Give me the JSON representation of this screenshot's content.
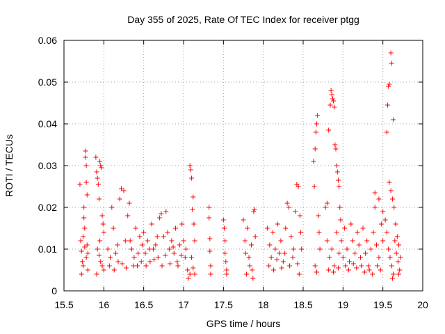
{
  "chart_data": {
    "type": "scatter",
    "title": "Day 355 of 2025, Rate Of TEC Index for receiver ptgg",
    "xlabel": "GPS time / hours",
    "ylabel": "ROTI / TECUs",
    "xlim": [
      15.5,
      20
    ],
    "ylim": [
      0,
      0.06
    ],
    "xticks": [
      15.5,
      16,
      16.5,
      17,
      17.5,
      18,
      18.5,
      19,
      19.5,
      20
    ],
    "xtick_labels": [
      "15.5",
      "16",
      "16.5",
      "17",
      "17.5",
      "18",
      "18.5",
      "19",
      "19.5",
      "20"
    ],
    "yticks": [
      0,
      0.01,
      0.02,
      0.03,
      0.04,
      0.05,
      0.06
    ],
    "ytick_labels": [
      "0",
      "0.01",
      "0.02",
      "0.03",
      "0.04",
      "0.05",
      "0.06"
    ],
    "grid": true,
    "marker": "+",
    "color": "#ff0000",
    "series": [
      {
        "name": "ROTI",
        "points": [
          [
            15.7,
            0.0255
          ],
          [
            15.71,
            0.012
          ],
          [
            15.72,
            0.0095
          ],
          [
            15.73,
            0.007
          ],
          [
            15.74,
            0.006
          ],
          [
            15.75,
            0.0175
          ],
          [
            15.75,
            0.02
          ],
          [
            15.76,
            0.015
          ],
          [
            15.77,
            0.0335
          ],
          [
            15.77,
            0.032
          ],
          [
            15.78,
            0.03
          ],
          [
            15.78,
            0.026
          ],
          [
            15.79,
            0.023
          ],
          [
            15.79,
            0.011
          ],
          [
            15.8,
            0.009
          ],
          [
            15.8,
            0.005
          ],
          [
            15.72,
            0.004
          ],
          [
            15.74,
            0.013
          ],
          [
            15.76,
            0.0105
          ],
          [
            15.78,
            0.008
          ],
          [
            15.9,
            0.032
          ],
          [
            15.91,
            0.0285
          ],
          [
            15.92,
            0.027
          ],
          [
            15.93,
            0.0255
          ],
          [
            15.94,
            0.022
          ],
          [
            15.95,
            0.031
          ],
          [
            15.96,
            0.03
          ],
          [
            15.97,
            0.0295
          ],
          [
            15.98,
            0.018
          ],
          [
            15.99,
            0.016
          ],
          [
            16.0,
            0.014
          ],
          [
            15.92,
            0.01
          ],
          [
            15.94,
            0.0085
          ],
          [
            15.96,
            0.007
          ],
          [
            15.98,
            0.006
          ],
          [
            16.0,
            0.005
          ],
          [
            15.91,
            0.004
          ],
          [
            15.95,
            0.012
          ],
          [
            16.05,
            0.01
          ],
          [
            16.08,
            0.008
          ],
          [
            16.1,
            0.02
          ],
          [
            16.12,
            0.015
          ],
          [
            16.15,
            0.009
          ],
          [
            16.18,
            0.007
          ],
          [
            16.2,
            0.022
          ],
          [
            16.22,
            0.0245
          ],
          [
            16.25,
            0.024
          ],
          [
            16.27,
            0.012
          ],
          [
            16.3,
            0.018
          ],
          [
            16.32,
            0.021
          ],
          [
            16.35,
            0.01
          ],
          [
            16.38,
            0.008
          ],
          [
            16.4,
            0.015
          ],
          [
            16.42,
            0.006
          ],
          [
            16.45,
            0.013
          ],
          [
            16.48,
            0.011
          ],
          [
            16.5,
            0.014
          ],
          [
            16.52,
            0.009
          ],
          [
            16.55,
            0.012
          ],
          [
            16.58,
            0.007
          ],
          [
            16.6,
            0.016
          ],
          [
            16.62,
            0.01
          ],
          [
            16.65,
            0.011
          ],
          [
            16.68,
            0.008
          ],
          [
            16.7,
            0.0175
          ],
          [
            16.72,
            0.0185
          ],
          [
            16.75,
            0.013
          ],
          [
            16.78,
            0.019
          ],
          [
            16.8,
            0.014
          ],
          [
            16.82,
            0.01
          ],
          [
            16.85,
            0.012
          ],
          [
            16.88,
            0.009
          ],
          [
            16.9,
            0.015
          ],
          [
            16.92,
            0.007
          ],
          [
            16.95,
            0.011
          ],
          [
            16.98,
            0.016
          ],
          [
            17.0,
            0.012
          ],
          [
            17.02,
            0.008
          ],
          [
            17.05,
            0.005
          ],
          [
            17.08,
            0.004
          ],
          [
            16.07,
            0.006
          ],
          [
            16.13,
            0.005
          ],
          [
            16.17,
            0.011
          ],
          [
            16.23,
            0.0065
          ],
          [
            16.28,
            0.0055
          ],
          [
            16.33,
            0.012
          ],
          [
            16.37,
            0.006
          ],
          [
            16.43,
            0.009
          ],
          [
            16.47,
            0.007
          ],
          [
            16.53,
            0.006
          ],
          [
            16.57,
            0.01
          ],
          [
            16.63,
            0.0075
          ],
          [
            16.67,
            0.013
          ],
          [
            16.73,
            0.006
          ],
          [
            16.77,
            0.0085
          ],
          [
            16.83,
            0.0065
          ],
          [
            16.87,
            0.0105
          ],
          [
            16.93,
            0.006
          ],
          [
            16.97,
            0.0085
          ],
          [
            17.03,
            0.01
          ],
          [
            17.08,
            0.03
          ],
          [
            17.09,
            0.029
          ],
          [
            17.1,
            0.027
          ],
          [
            17.11,
            0.0195
          ],
          [
            17.12,
            0.0225
          ],
          [
            17.13,
            0.016
          ],
          [
            17.14,
            0.012
          ],
          [
            17.1,
            0.008
          ],
          [
            17.12,
            0.0055
          ],
          [
            17.14,
            0.004
          ],
          [
            17.06,
            0.003
          ],
          [
            17.32,
            0.02
          ],
          [
            17.32,
            0.0175
          ],
          [
            17.33,
            0.0125
          ],
          [
            17.33,
            0.0095
          ],
          [
            17.34,
            0.006
          ],
          [
            17.34,
            0.004
          ],
          [
            17.5,
            0.017
          ],
          [
            17.51,
            0.015
          ],
          [
            17.52,
            0.012
          ],
          [
            17.52,
            0.009
          ],
          [
            17.53,
            0.007
          ],
          [
            17.54,
            0.005
          ],
          [
            17.54,
            0.004
          ],
          [
            17.75,
            0.017
          ],
          [
            17.77,
            0.012
          ],
          [
            17.78,
            0.009
          ],
          [
            17.8,
            0.015
          ],
          [
            17.82,
            0.008
          ],
          [
            17.83,
            0.006
          ],
          [
            17.85,
            0.011
          ],
          [
            17.86,
            0.005
          ],
          [
            17.88,
            0.019
          ],
          [
            17.89,
            0.0195
          ],
          [
            17.9,
            0.013
          ],
          [
            17.87,
            0.003
          ],
          [
            17.79,
            0.004
          ],
          [
            18.05,
            0.015
          ],
          [
            18.08,
            0.011
          ],
          [
            18.1,
            0.008
          ],
          [
            18.12,
            0.014
          ],
          [
            18.15,
            0.01
          ],
          [
            18.18,
            0.016
          ],
          [
            18.2,
            0.009
          ],
          [
            18.22,
            0.012
          ],
          [
            18.25,
            0.007
          ],
          [
            18.28,
            0.015
          ],
          [
            18.3,
            0.021
          ],
          [
            18.32,
            0.02
          ],
          [
            18.35,
            0.013
          ],
          [
            18.38,
            0.01
          ],
          [
            18.4,
            0.019
          ],
          [
            18.42,
            0.0255
          ],
          [
            18.44,
            0.025
          ],
          [
            18.46,
            0.018
          ],
          [
            18.47,
            0.014
          ],
          [
            18.48,
            0.01
          ],
          [
            18.07,
            0.006
          ],
          [
            18.13,
            0.005
          ],
          [
            18.17,
            0.0075
          ],
          [
            18.23,
            0.0055
          ],
          [
            18.27,
            0.009
          ],
          [
            18.33,
            0.006
          ],
          [
            18.37,
            0.008
          ],
          [
            18.43,
            0.0065
          ],
          [
            18.45,
            0.004
          ],
          [
            18.63,
            0.031
          ],
          [
            18.64,
            0.025
          ],
          [
            18.65,
            0.034
          ],
          [
            18.66,
            0.038
          ],
          [
            18.67,
            0.04
          ],
          [
            18.68,
            0.042
          ],
          [
            18.69,
            0.018
          ],
          [
            18.7,
            0.014
          ],
          [
            18.71,
            0.01
          ],
          [
            18.65,
            0.006
          ],
          [
            18.67,
            0.0045
          ],
          [
            18.78,
            0.02
          ],
          [
            18.8,
            0.021
          ],
          [
            18.82,
            0.0385
          ],
          [
            18.84,
            0.0445
          ],
          [
            18.85,
            0.048
          ],
          [
            18.86,
            0.047
          ],
          [
            18.87,
            0.046
          ],
          [
            18.88,
            0.0455
          ],
          [
            18.89,
            0.044
          ],
          [
            18.9,
            0.035
          ],
          [
            18.91,
            0.034
          ],
          [
            18.92,
            0.03
          ],
          [
            18.93,
            0.0285
          ],
          [
            18.94,
            0.0265
          ],
          [
            18.95,
            0.025
          ],
          [
            18.96,
            0.02
          ],
          [
            18.97,
            0.017
          ],
          [
            18.8,
            0.012
          ],
          [
            18.83,
            0.008
          ],
          [
            18.86,
            0.01
          ],
          [
            18.89,
            0.006
          ],
          [
            18.92,
            0.014
          ],
          [
            18.95,
            0.009
          ],
          [
            18.98,
            0.012
          ],
          [
            19.0,
            0.008
          ],
          [
            19.02,
            0.015
          ],
          [
            19.05,
            0.01
          ],
          [
            19.08,
            0.007
          ],
          [
            19.1,
            0.016
          ],
          [
            19.12,
            0.012
          ],
          [
            19.15,
            0.009
          ],
          [
            19.18,
            0.014
          ],
          [
            19.2,
            0.011
          ],
          [
            19.22,
            0.008
          ],
          [
            19.25,
            0.015
          ],
          [
            19.28,
            0.009
          ],
          [
            19.3,
            0.012
          ],
          [
            19.32,
            0.006
          ],
          [
            19.35,
            0.01
          ],
          [
            19.38,
            0.014
          ],
          [
            19.4,
            0.02
          ],
          [
            19.42,
            0.011
          ],
          [
            19.45,
            0.008
          ],
          [
            19.48,
            0.016
          ],
          [
            19.5,
            0.012
          ],
          [
            18.82,
            0.005
          ],
          [
            18.88,
            0.0045
          ],
          [
            18.94,
            0.0055
          ],
          [
            19.03,
            0.006
          ],
          [
            19.07,
            0.005
          ],
          [
            19.13,
            0.0065
          ],
          [
            19.17,
            0.0055
          ],
          [
            19.23,
            0.006
          ],
          [
            19.27,
            0.0045
          ],
          [
            19.33,
            0.005
          ],
          [
            19.37,
            0.004
          ],
          [
            19.43,
            0.006
          ],
          [
            19.47,
            0.005
          ],
          [
            19.4,
            0.0235
          ],
          [
            19.45,
            0.022
          ],
          [
            19.5,
            0.019
          ],
          [
            19.53,
            0.017
          ],
          [
            19.55,
            0.038
          ],
          [
            19.56,
            0.0445
          ],
          [
            19.57,
            0.049
          ],
          [
            19.58,
            0.0495
          ],
          [
            19.6,
            0.057
          ],
          [
            19.61,
            0.0545
          ],
          [
            19.63,
            0.041
          ],
          [
            19.58,
            0.026
          ],
          [
            19.6,
            0.024
          ],
          [
            19.62,
            0.022
          ],
          [
            19.64,
            0.02
          ],
          [
            19.66,
            0.016
          ],
          [
            19.55,
            0.014
          ],
          [
            19.57,
            0.01
          ],
          [
            19.59,
            0.008
          ],
          [
            19.61,
            0.006
          ],
          [
            19.63,
            0.004
          ],
          [
            19.62,
            0.003
          ],
          [
            19.65,
            0.012
          ],
          [
            19.67,
            0.009
          ],
          [
            19.68,
            0.013
          ],
          [
            19.69,
            0.007
          ],
          [
            19.7,
            0.011
          ],
          [
            19.71,
            0.005
          ],
          [
            19.72,
            0.008
          ],
          [
            19.7,
            0.004
          ]
        ]
      }
    ]
  }
}
